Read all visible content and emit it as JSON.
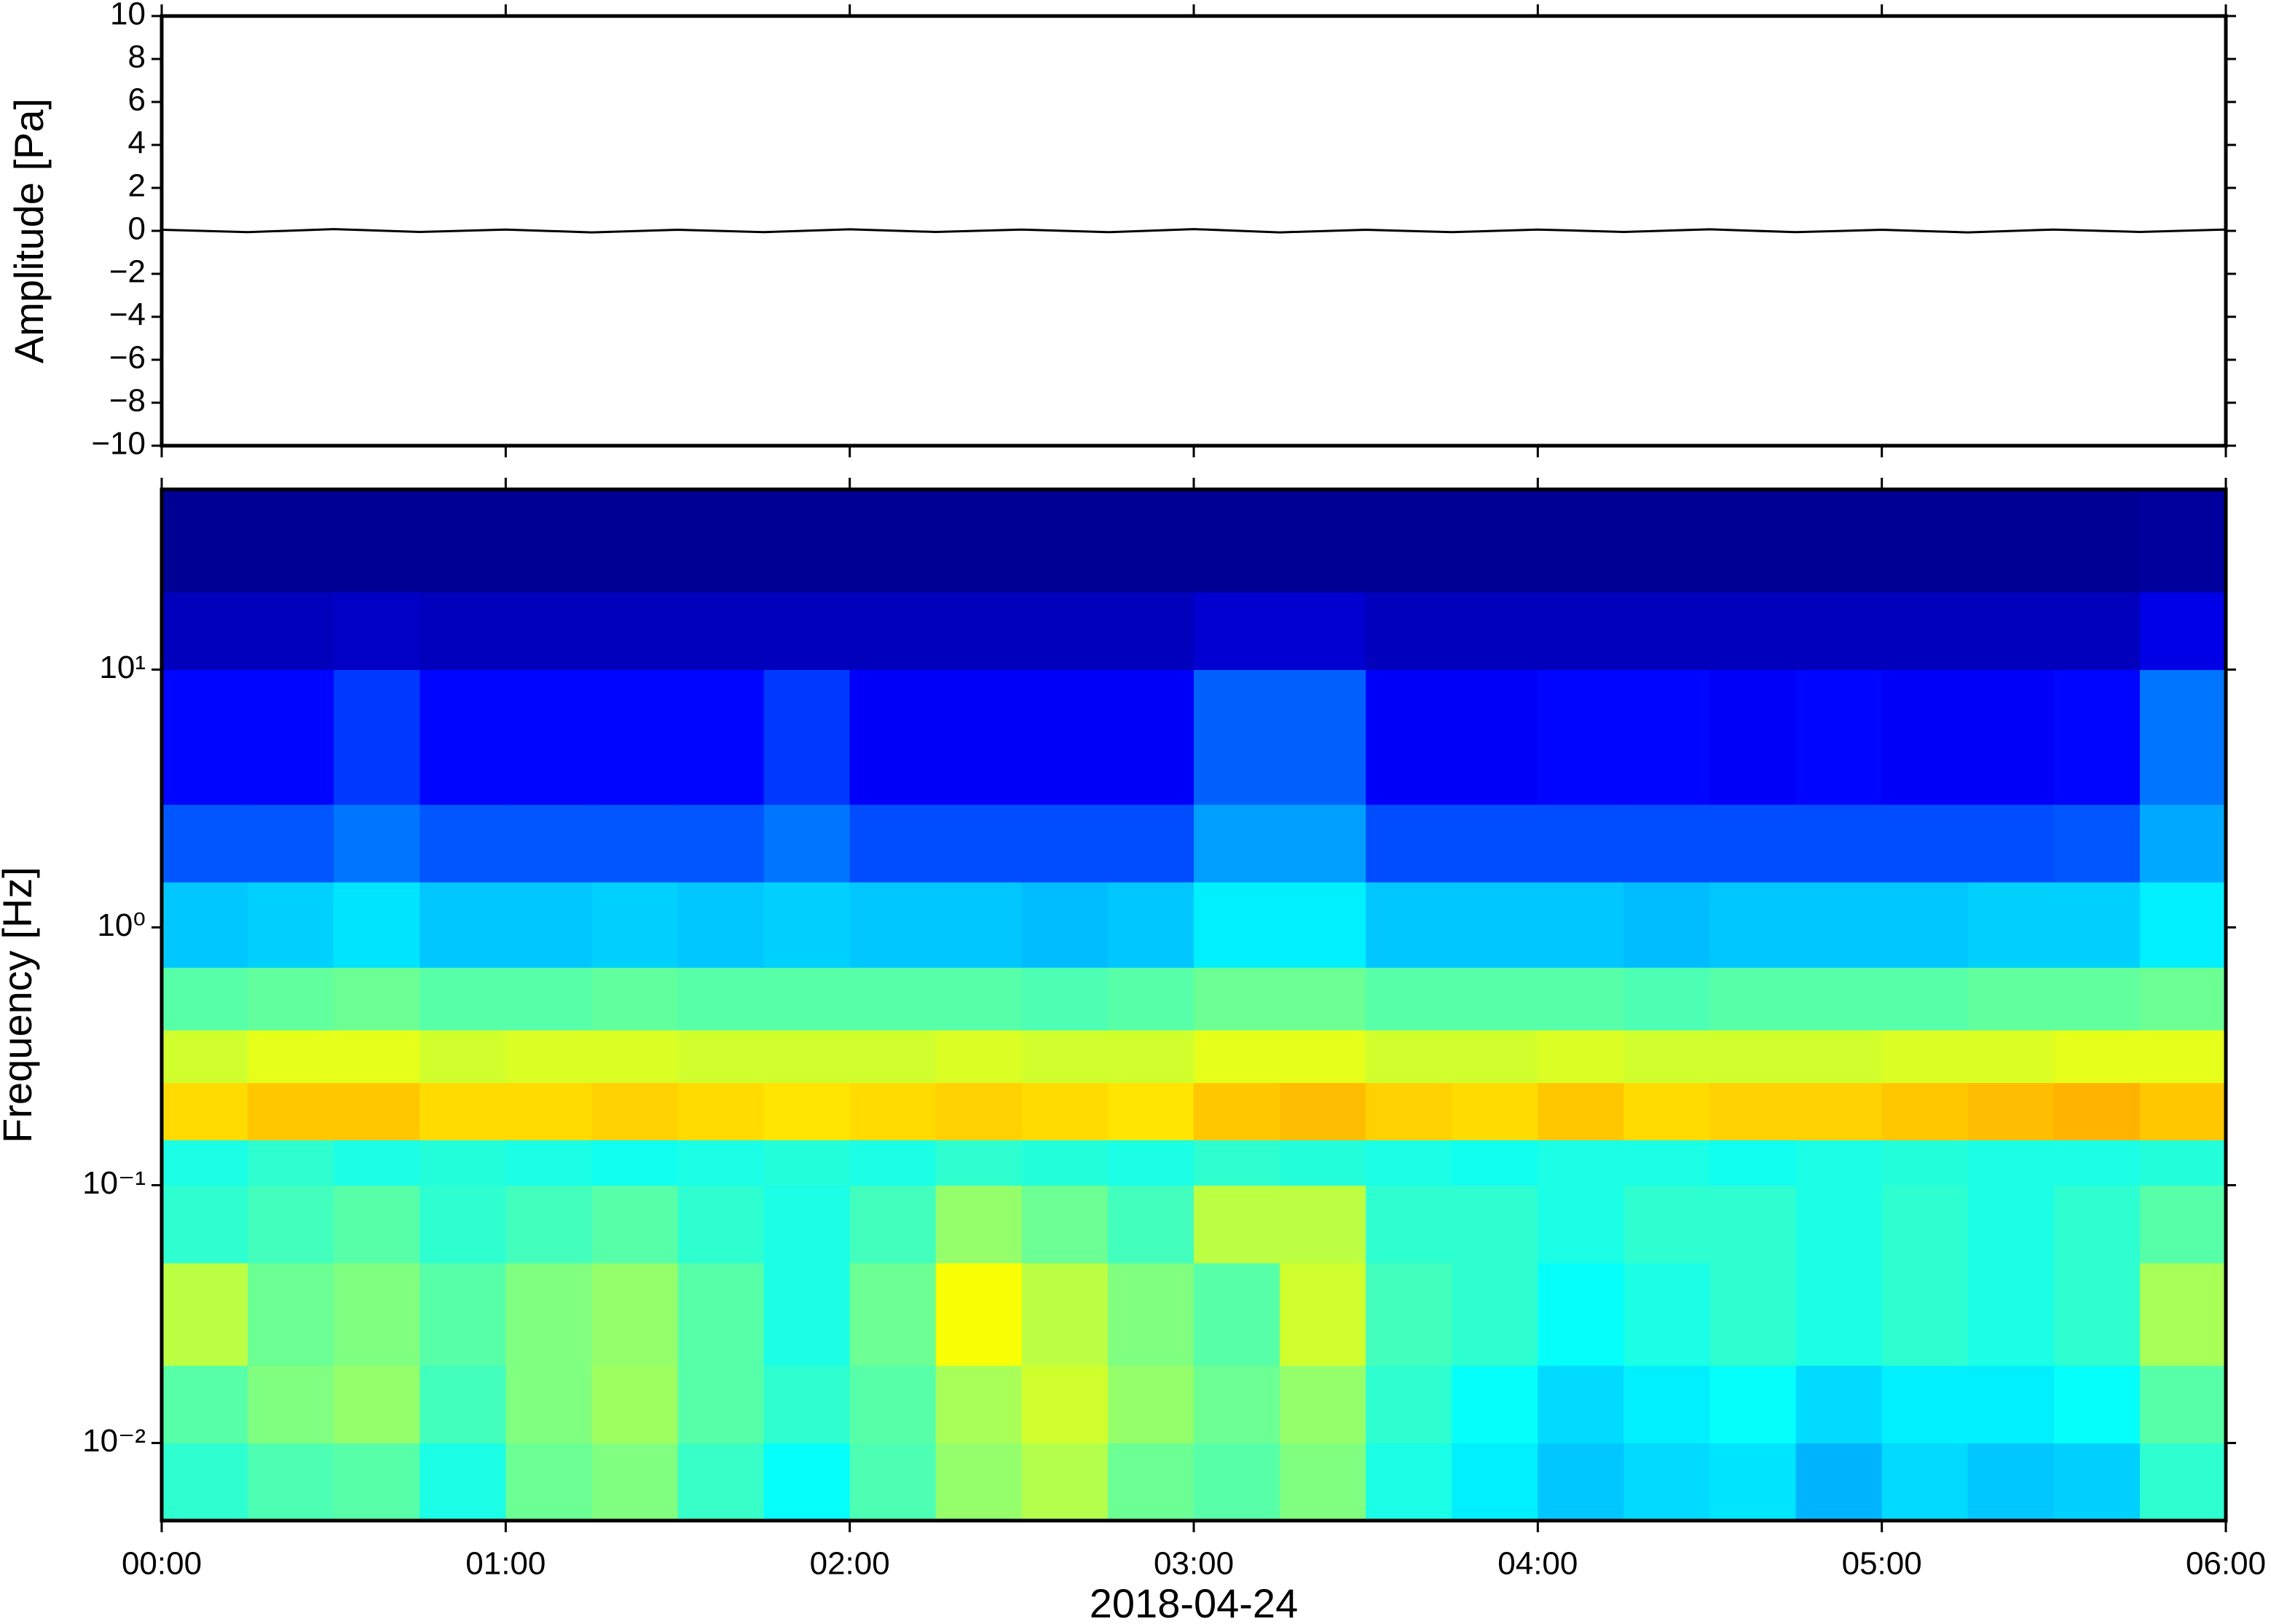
{
  "chart_data": [
    {
      "type": "line",
      "ylabel": "Amplitude [Pa]",
      "color": "#000000",
      "x": [
        0,
        0.25,
        0.5,
        0.75,
        1,
        1.25,
        1.5,
        1.75,
        2,
        2.25,
        2.5,
        2.75,
        3,
        3.25,
        3.5,
        3.75,
        4,
        4.25,
        4.5,
        4.75,
        5,
        5.25,
        5.5,
        5.75,
        6
      ],
      "values": [
        0.05,
        -0.06,
        0.08,
        -0.05,
        0.06,
        -0.07,
        0.05,
        -0.06,
        0.07,
        -0.05,
        0.06,
        -0.06,
        0.08,
        -0.07,
        0.05,
        -0.06,
        0.06,
        -0.05,
        0.07,
        -0.06,
        0.05,
        -0.07,
        0.06,
        -0.05,
        0.06
      ],
      "xlim": [
        0,
        6
      ],
      "xticks": [
        0,
        1,
        2,
        3,
        4,
        5,
        6
      ],
      "ylim": [
        -10,
        10
      ],
      "yticks": [
        {
          "value": -10,
          "label": "−10"
        },
        {
          "value": -8,
          "label": "−8"
        },
        {
          "value": -6,
          "label": "−6"
        },
        {
          "value": -4,
          "label": "−4"
        },
        {
          "value": -2,
          "label": "−2"
        },
        0,
        2,
        4,
        6,
        8,
        10
      ]
    },
    {
      "type": "heatmap",
      "ylabel": "Frequency [Hz]",
      "xlabel": "2018-04-24",
      "log_y": true,
      "colormap": "jet",
      "zlim": [
        0,
        10
      ],
      "xlim": [
        0,
        6
      ],
      "xticks": [
        {
          "value": 0,
          "label": "00:00"
        },
        {
          "value": 1,
          "label": "01:00"
        },
        {
          "value": 2,
          "label": "02:00"
        },
        {
          "value": 3,
          "label": "03:00"
        },
        {
          "value": 4,
          "label": "04:00"
        },
        {
          "value": 5,
          "label": "05:00"
        },
        {
          "value": 6,
          "label": "06:00"
        }
      ],
      "ylim": [
        0.005,
        50
      ],
      "yticks": [
        {
          "value": 0.01,
          "label": "10⁻²"
        },
        {
          "value": 0.1,
          "label": "10⁻¹"
        },
        {
          "value": 1,
          "label": "10⁰"
        },
        {
          "value": 10,
          "label": "10¹"
        }
      ],
      "xbins": [
        0,
        0.25,
        0.5,
        0.75,
        1,
        1.25,
        1.5,
        1.75,
        2,
        2.25,
        2.5,
        2.75,
        3,
        3.25,
        3.5,
        3.75,
        4,
        4.25,
        4.5,
        4.75,
        5,
        5.25,
        5.5,
        5.75,
        6
      ],
      "ybins": [
        0.005,
        0.01,
        0.02,
        0.05,
        0.1,
        0.15,
        0.25,
        0.4,
        0.7,
        1.5,
        3,
        10,
        20,
        50
      ],
      "z": [
        [
          4.2,
          4.5,
          4.6,
          4.0,
          4.8,
          5.0,
          4.3,
          3.8,
          4.5,
          5.2,
          5.5,
          4.8,
          4.6,
          5.0,
          4.0,
          3.6,
          3.2,
          3.4,
          3.5,
          3.0,
          3.4,
          3.2,
          3.3,
          4.2
        ],
        [
          4.6,
          5.0,
          5.2,
          4.4,
          5.0,
          5.3,
          4.6,
          4.2,
          4.6,
          5.4,
          5.8,
          5.2,
          4.8,
          5.2,
          4.2,
          3.8,
          3.4,
          3.6,
          3.8,
          3.4,
          3.6,
          3.6,
          3.8,
          4.6
        ],
        [
          5.6,
          4.8,
          5.0,
          4.6,
          5.0,
          5.2,
          4.6,
          4.0,
          4.8,
          6.2,
          5.6,
          5.0,
          4.6,
          5.8,
          4.4,
          4.2,
          3.8,
          4.0,
          4.2,
          4.0,
          4.2,
          4.0,
          4.2,
          5.4
        ],
        [
          4.2,
          4.4,
          4.6,
          4.2,
          4.4,
          4.6,
          4.2,
          4.0,
          4.4,
          5.2,
          4.8,
          4.4,
          5.6,
          5.6,
          4.2,
          4.2,
          4.0,
          4.2,
          4.2,
          4.0,
          4.2,
          4.0,
          4.2,
          4.6
        ],
        [
          4.0,
          4.2,
          4.0,
          4.1,
          4.0,
          3.9,
          4.0,
          4.1,
          4.0,
          4.2,
          4.1,
          4.0,
          4.2,
          4.1,
          4.0,
          3.9,
          4.0,
          4.0,
          3.9,
          4.0,
          4.1,
          4.0,
          4.0,
          4.1
        ],
        [
          6.6,
          6.8,
          6.8,
          6.6,
          6.6,
          6.7,
          6.6,
          6.5,
          6.6,
          6.7,
          6.6,
          6.5,
          6.8,
          6.9,
          6.7,
          6.6,
          6.8,
          6.6,
          6.7,
          6.7,
          6.8,
          6.9,
          7.0,
          6.8
        ],
        [
          5.8,
          6.0,
          6.0,
          5.8,
          5.9,
          5.9,
          5.8,
          5.8,
          5.8,
          5.9,
          5.8,
          5.8,
          6.0,
          6.0,
          5.8,
          5.8,
          5.9,
          5.8,
          5.8,
          5.8,
          5.9,
          5.9,
          6.0,
          6.0
        ],
        [
          4.6,
          4.7,
          4.8,
          4.6,
          4.6,
          4.7,
          4.6,
          4.6,
          4.6,
          4.6,
          4.5,
          4.6,
          4.8,
          4.8,
          4.6,
          4.6,
          4.6,
          4.5,
          4.6,
          4.6,
          4.6,
          4.7,
          4.7,
          4.8
        ],
        [
          3.2,
          3.3,
          3.5,
          3.2,
          3.2,
          3.3,
          3.2,
          3.3,
          3.2,
          3.2,
          3.1,
          3.2,
          3.6,
          3.6,
          3.2,
          3.2,
          3.2,
          3.1,
          3.2,
          3.2,
          3.2,
          3.3,
          3.3,
          3.6
        ],
        [
          2.1,
          2.1,
          2.4,
          2.1,
          2.1,
          2.1,
          2.1,
          2.4,
          2.0,
          2.0,
          2.0,
          2.0,
          2.8,
          2.8,
          2.0,
          2.0,
          2.0,
          2.0,
          2.0,
          2.0,
          2.0,
          2.0,
          2.1,
          2.9
        ],
        [
          1.3,
          1.3,
          1.8,
          1.3,
          1.3,
          1.3,
          1.3,
          1.8,
          1.2,
          1.2,
          1.2,
          1.2,
          2.2,
          2.2,
          1.2,
          1.2,
          1.3,
          1.3,
          1.2,
          1.3,
          1.2,
          1.2,
          1.3,
          2.4
        ],
        [
          0.6,
          0.6,
          0.7,
          0.6,
          0.6,
          0.6,
          0.6,
          0.6,
          0.6,
          0.6,
          0.6,
          0.6,
          0.8,
          0.8,
          0.6,
          0.6,
          0.6,
          0.6,
          0.6,
          0.6,
          0.6,
          0.6,
          0.6,
          1.0
        ],
        [
          0.2,
          0.2,
          0.2,
          0.2,
          0.2,
          0.2,
          0.2,
          0.2,
          0.2,
          0.2,
          0.2,
          0.2,
          0.2,
          0.2,
          0.2,
          0.2,
          0.2,
          0.2,
          0.2,
          0.2,
          0.2,
          0.2,
          0.2,
          0.3
        ]
      ]
    }
  ]
}
